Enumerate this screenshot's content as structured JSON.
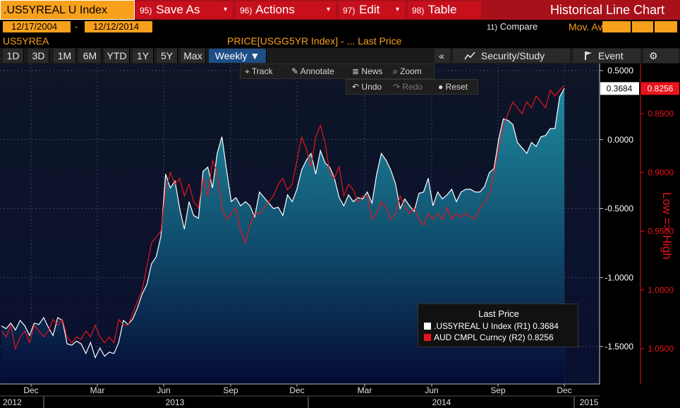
{
  "titlebar": {
    "ticker": ".US5YREAL U Index",
    "menus": [
      {
        "num": "95)",
        "label": "Save As",
        "caret": "▾"
      },
      {
        "num": "96)",
        "label": "Actions",
        "caret": "▾"
      },
      {
        "num": "97)",
        "label": "Edit",
        "caret": "▾"
      },
      {
        "num": "98)",
        "label": "Table",
        "caret": ""
      }
    ],
    "title": "Historical Line Chart"
  },
  "dates": {
    "start": "12/17/2004",
    "separator": "-",
    "end": "12/12/2014"
  },
  "compare": {
    "num": "11)",
    "label": "Compare",
    "mov_avgs": "Mov. Avgs"
  },
  "symbol": "US5YREA",
  "price_field": "PRICE[USGG5YR Index]  -    ...    Last Price",
  "ranges": [
    "1D",
    "3D",
    "1M",
    "6M",
    "YTD",
    "1Y",
    "5Y",
    "Max"
  ],
  "frequency": "Weekly ▼",
  "right_toolbar": {
    "collapse": "«",
    "security_study": "Security/Study",
    "event": "Event",
    "settings": "⚙"
  },
  "chart_tools": {
    "track": "Track",
    "annotate": "Annotate",
    "news": "News",
    "zoom": "Zoom",
    "undo": "Undo",
    "redo": "Redo",
    "reset": "Reset"
  },
  "legend": {
    "title": "Last Price",
    "rows": [
      {
        "label": ".US5YREAL U Index  (R1)  0.3684",
        "color": "#ffffff"
      },
      {
        "label": "AUD CMPL Curncy  (R2)   0.8256",
        "color": "#e8141c"
      }
    ]
  },
  "colors": {
    "accent": "#f7a01c",
    "title_bar": "#a9111a",
    "series_red": "#e8141c",
    "area_top": "#1f8aa0",
    "area_bottom": "#050a33"
  },
  "chart_data": {
    "type": "line",
    "x_labels": [
      "Dec",
      "Mar",
      "Jun",
      "Sep",
      "Dec",
      "Mar",
      "Jun",
      "Sep",
      "Dec"
    ],
    "year_labels": [
      "2012",
      "2013",
      "2014",
      "2015"
    ],
    "right_axis_1": {
      "ticks": [
        "0.5000",
        "0.0000",
        "-0.5000",
        "-1.0000",
        "-1.5000"
      ],
      "ylim": [
        -1.75,
        0.5
      ],
      "last": "0.3684"
    },
    "right_axis_2": {
      "ticks": [
        "0.8500",
        "0.9000",
        "0.9500",
        "1.0000",
        "1.0500"
      ],
      "ylim": [
        0.8,
        1.075
      ],
      "inverted": true,
      "label": "Low => High",
      "last": "0.8256"
    },
    "series": [
      {
        "name": ".US5YREAL U Index (R1)",
        "axis": "R1",
        "values": [
          -1.35,
          -1.37,
          -1.33,
          -1.38,
          -1.31,
          -1.35,
          -1.42,
          -1.33,
          -1.34,
          -1.29,
          -1.36,
          -1.42,
          -1.29,
          -1.31,
          -1.48,
          -1.49,
          -1.46,
          -1.48,
          -1.55,
          -1.47,
          -1.58,
          -1.51,
          -1.57,
          -1.54,
          -1.55,
          -1.47,
          -1.31,
          -1.34,
          -1.3,
          -1.22,
          -1.12,
          -1.05,
          -0.9,
          -0.85,
          -0.7,
          -0.25,
          -0.35,
          -0.3,
          -0.5,
          -0.65,
          -0.45,
          -0.55,
          -0.57,
          -0.23,
          -0.2,
          -0.35,
          -0.1,
          0.02,
          -0.22,
          -0.45,
          -0.42,
          -0.48,
          -0.45,
          -0.48,
          -0.56,
          -0.38,
          -0.42,
          -0.46,
          -0.5,
          -0.49,
          -0.55,
          -0.4,
          -0.45,
          -0.36,
          -0.22,
          -0.15,
          -0.1,
          -0.25,
          -0.08,
          -0.17,
          -0.2,
          -0.28,
          -0.42,
          -0.48,
          -0.4,
          -0.45,
          -0.42,
          -0.43,
          -0.38,
          -0.46,
          -0.25,
          -0.1,
          -0.15,
          -0.22,
          -0.32,
          -0.5,
          -0.43,
          -0.48,
          -0.52,
          -0.39,
          -0.38,
          -0.28,
          -0.48,
          -0.38,
          -0.43,
          -0.4,
          -0.36,
          -0.45,
          -0.38,
          -0.36,
          -0.36,
          -0.38,
          -0.38,
          -0.34,
          -0.24,
          -0.21,
          0.0,
          0.15,
          0.14,
          0.11,
          -0.02,
          -0.06,
          -0.1,
          -0.02,
          -0.05,
          0.02,
          0.03,
          0.08,
          0.08,
          0.31,
          0.37
        ]
      },
      {
        "name": "AUD CMPL Curncy (R2)",
        "axis": "R2",
        "values": [
          1.035,
          1.04,
          1.03,
          1.05,
          1.04,
          1.035,
          1.045,
          1.03,
          1.035,
          1.04,
          1.035,
          1.025,
          1.03,
          1.025,
          1.04,
          1.045,
          1.04,
          1.042,
          1.035,
          1.04,
          1.03,
          1.04,
          1.045,
          1.04,
          1.045,
          1.025,
          1.03,
          1.03,
          1.02,
          1.01,
          1.0,
          0.98,
          0.96,
          0.955,
          0.95,
          0.915,
          0.9,
          0.91,
          0.905,
          0.92,
          0.91,
          0.925,
          0.93,
          0.905,
          0.92,
          0.89,
          0.9,
          0.93,
          0.94,
          0.935,
          0.93,
          0.95,
          0.96,
          0.945,
          0.935,
          0.935,
          0.93,
          0.925,
          0.92,
          0.91,
          0.905,
          0.915,
          0.91,
          0.89,
          0.87,
          0.88,
          0.895,
          0.87,
          0.86,
          0.875,
          0.9,
          0.905,
          0.895,
          0.92,
          0.91,
          0.915,
          0.925,
          0.92,
          0.92,
          0.94,
          0.935,
          0.925,
          0.93,
          0.94,
          0.935,
          0.92,
          0.93,
          0.935,
          0.93,
          0.94,
          0.945,
          0.935,
          0.94,
          0.935,
          0.94,
          0.93,
          0.94,
          0.935,
          0.938,
          0.935,
          0.938,
          0.94,
          0.93,
          0.925,
          0.92,
          0.9,
          0.88,
          0.86,
          0.85,
          0.84,
          0.845,
          0.85,
          0.84,
          0.845,
          0.835,
          0.84,
          0.845,
          0.83,
          0.835,
          0.83,
          0.826
        ]
      }
    ]
  }
}
